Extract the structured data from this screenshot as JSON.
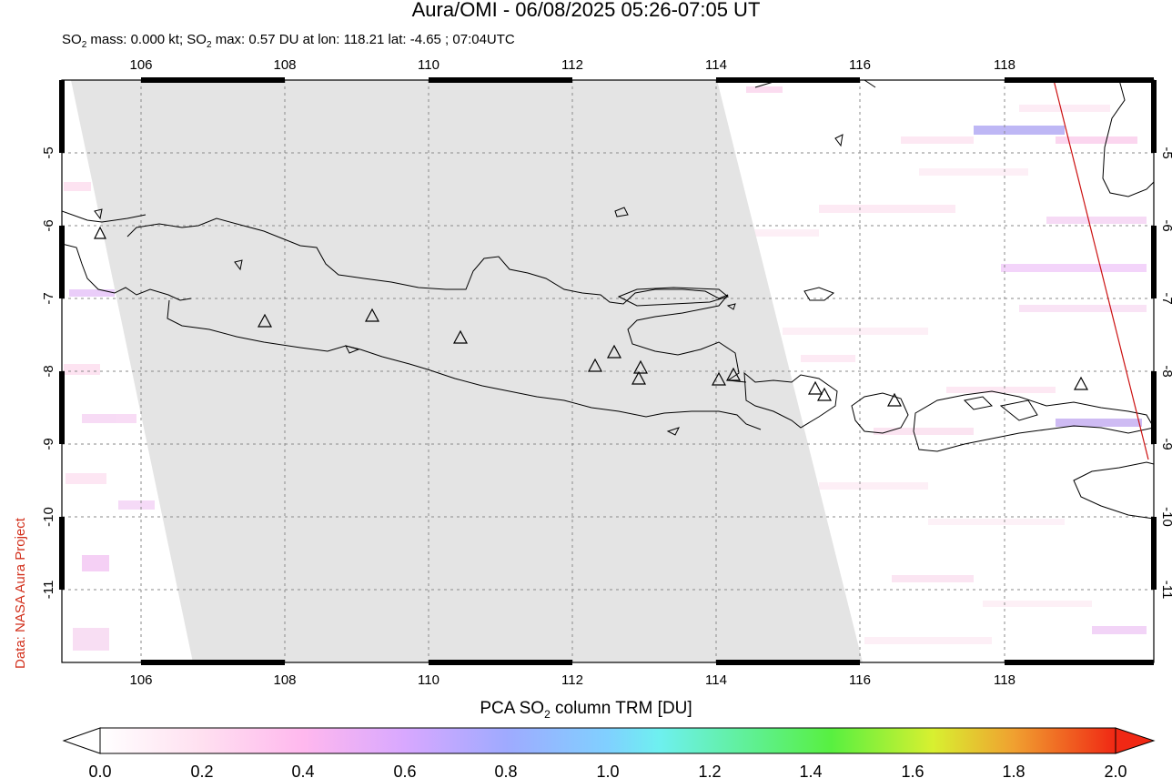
{
  "title": "Aura/OMI - 06/08/2025 05:26-07:05 UT",
  "subtitle": {
    "part1": "SO",
    "sub1": "2",
    "part2": " mass: 0.000 kt; SO",
    "sub2": "2",
    "part3": " max: 0.57 DU at lon: 118.21 lat: -4.65 ; 07:04UTC"
  },
  "credit": "Data: NASA Aura Project",
  "map": {
    "lon_ticks": [
      "106",
      "108",
      "110",
      "112",
      "114",
      "116",
      "118"
    ],
    "lat_ticks": [
      "-5",
      "-6",
      "-7",
      "-8",
      "-9",
      "-10",
      "-11"
    ],
    "lon_range": [
      105.0,
      120.0
    ],
    "lat_range": [
      -12.0,
      -4.0
    ],
    "gridlines": true,
    "no_data_region": "gray swath over western half",
    "volcano_marker": "triangle-icon"
  },
  "colorbar": {
    "label_pre": "PCA SO",
    "label_sub": "2",
    "label_post": " column TRM [DU]",
    "ticks": [
      "0.0",
      "0.2",
      "0.4",
      "0.6",
      "0.8",
      "1.0",
      "1.2",
      "1.4",
      "1.6",
      "1.8",
      "2.0"
    ],
    "range": [
      0.0,
      2.0
    ],
    "colors": [
      "#ffffff",
      "#ffc8f0",
      "#dca0ff",
      "#9fa8ff",
      "#6ef0ff",
      "#5af07a",
      "#c8f03c",
      "#f0b43c",
      "#f03214"
    ]
  }
}
